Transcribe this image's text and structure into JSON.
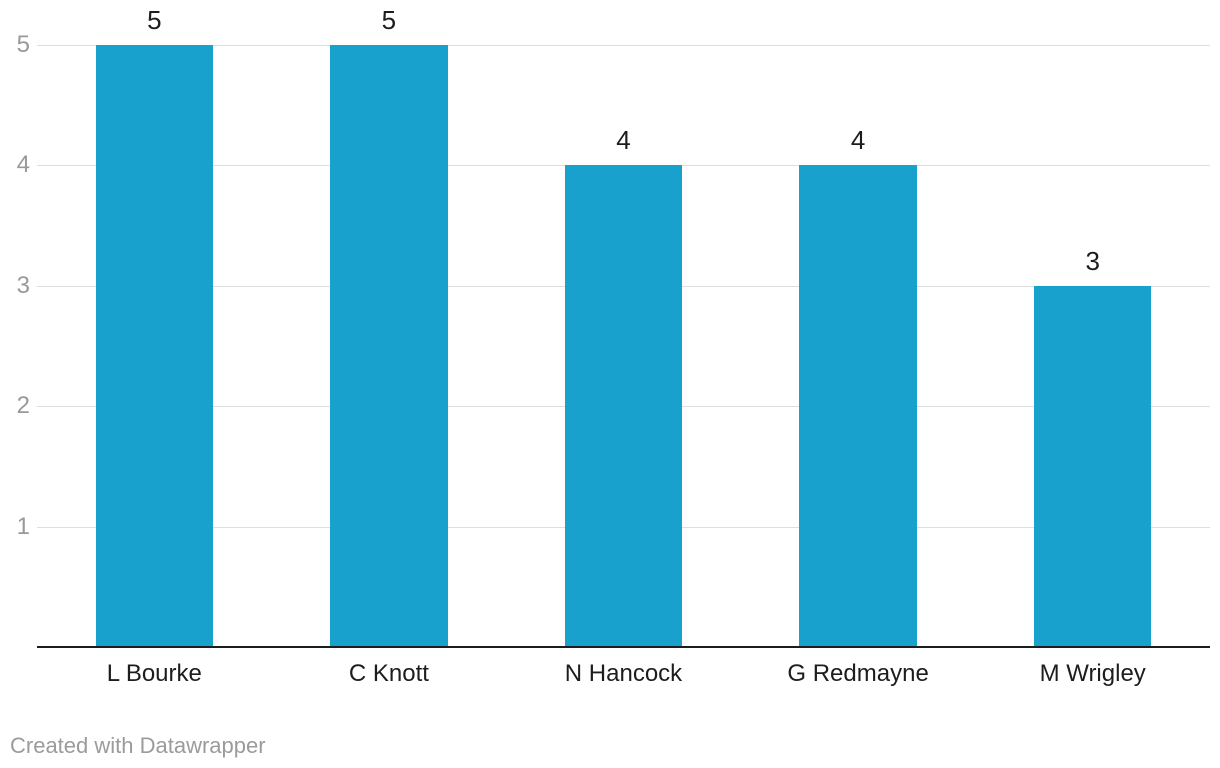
{
  "page": {
    "background": "#ffffff"
  },
  "footer": {
    "attribution": "Created with Datawrapper"
  },
  "chart_data": {
    "type": "bar",
    "title": "",
    "xlabel": "",
    "ylabel": "",
    "categories": [
      "L Bourke",
      "C Knott",
      "N Hancock",
      "G Redmayne",
      "M Wrigley"
    ],
    "values": [
      5,
      5,
      4,
      4,
      3
    ],
    "bar_value_labels": [
      "5",
      "5",
      "4",
      "4",
      "3"
    ],
    "ylim": [
      0,
      5
    ],
    "yticks": [
      1,
      2,
      3,
      4,
      5
    ],
    "grid": true,
    "legend": false,
    "colors": {
      "bar": "#18a1cd",
      "gridline": "#dedede",
      "axis_line": "#1d1d1d",
      "y_tick_label": "#999999",
      "category_label": "#1d1d1d",
      "value_label": "#1d1d1d",
      "attribution": "#9b9b9b"
    }
  }
}
